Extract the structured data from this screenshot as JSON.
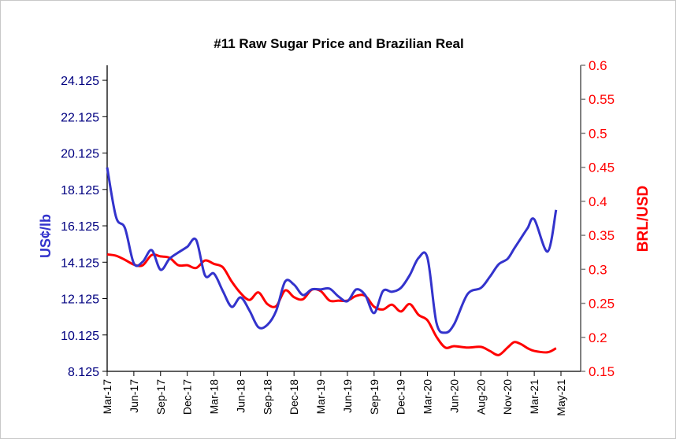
{
  "chart_data": {
    "type": "line",
    "title": "#11 Raw Sugar Price and Brazilian Real",
    "ylabel_left": "US¢/lb",
    "ylabel_right": "BRL/USD",
    "ylim_left": [
      8.125,
      24.95
    ],
    "ylim_right": [
      0.15,
      0.6
    ],
    "yticks_left": [
      "8.125",
      "10.125",
      "12.125",
      "14.125",
      "16.125",
      "18.125",
      "20.125",
      "22.125",
      "24.125"
    ],
    "yticks_right": [
      "0.15",
      "0.2",
      "0.25",
      "0.3",
      "0.35",
      "0.4",
      "0.45",
      "0.5",
      "0.55",
      "0.6"
    ],
    "xticks": [
      "Mar-17",
      "Jun-17",
      "Sep-17",
      "Dec-17",
      "Mar-18",
      "Jun-18",
      "Sep-18",
      "Dec-18",
      "Mar-19",
      "Jun-19",
      "Sep-19",
      "Dec-19",
      "Mar-20",
      "Jun-20",
      "Aug-20",
      "Nov-20",
      "Mar-21",
      "May-21"
    ],
    "grid": false,
    "legend": "none",
    "colors": {
      "sugar": "#3333cc",
      "brl": "#ff0000",
      "left_axis_text": "#000080",
      "right_axis_text": "#ff0000"
    },
    "x": [
      "2017-03",
      "2017-04",
      "2017-05",
      "2017-06",
      "2017-07",
      "2017-08",
      "2017-09",
      "2017-10",
      "2017-11",
      "2017-12",
      "2018-01",
      "2018-02",
      "2018-03",
      "2018-04",
      "2018-05",
      "2018-06",
      "2018-07",
      "2018-08",
      "2018-09",
      "2018-10",
      "2018-11",
      "2018-12",
      "2019-01",
      "2019-02",
      "2019-03",
      "2019-04",
      "2019-05",
      "2019-06",
      "2019-07",
      "2019-08",
      "2019-09",
      "2019-10",
      "2019-11",
      "2019-12",
      "2020-01",
      "2020-02",
      "2020-03",
      "2020-04",
      "2020-05",
      "2020-06",
      "2020-07",
      "2020-08",
      "2020-09",
      "2020-10",
      "2020-11",
      "2020-12",
      "2021-01",
      "2021-02",
      "2021-03",
      "2021-04",
      "2021-04-20"
    ],
    "series": [
      {
        "axis": "left",
        "values": [
          19.34,
          16.61,
          16.0,
          14.06,
          14.15,
          14.79,
          13.71,
          14.31,
          14.66,
          14.97,
          15.35,
          13.4,
          13.5,
          12.54,
          11.67,
          12.19,
          11.46,
          10.55,
          10.68,
          11.46,
          13.06,
          12.89,
          12.32,
          12.63,
          12.63,
          12.67,
          12.24,
          11.98,
          12.63,
          12.32,
          11.33,
          12.54,
          12.5,
          12.71,
          13.41,
          14.36,
          14.36,
          10.81,
          10.25,
          10.72,
          12.37,
          12.71,
          13.32,
          14.01,
          14.31,
          14.88,
          15.44,
          16.0,
          16.48,
          14.71,
          17.0
        ]
      },
      {
        "axis": "right",
        "values": [
          0.322,
          0.32,
          0.314,
          0.307,
          0.306,
          0.321,
          0.319,
          0.317,
          0.306,
          0.306,
          0.302,
          0.313,
          0.308,
          0.303,
          0.282,
          0.265,
          0.255,
          0.266,
          0.249,
          0.246,
          0.269,
          0.259,
          0.256,
          0.27,
          0.268,
          0.254,
          0.254,
          0.254,
          0.261,
          0.261,
          0.245,
          0.241,
          0.248,
          0.238,
          0.249,
          0.233,
          0.225,
          0.201,
          0.185,
          0.187,
          0.185,
          0.186,
          0.18,
          0.174,
          0.185,
          0.193,
          0.19,
          0.184,
          0.18,
          0.178,
          0.184
        ]
      }
    ]
  }
}
